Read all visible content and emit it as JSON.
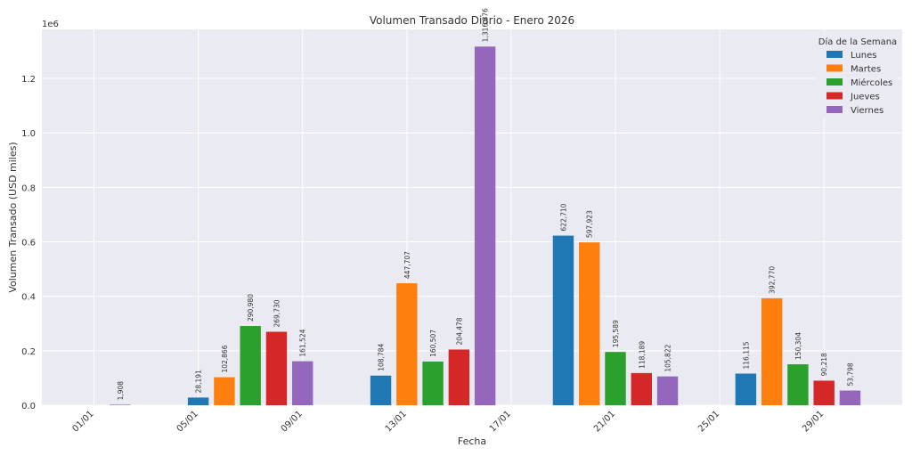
{
  "chart_data": {
    "type": "bar",
    "title": "Volumen Transado Diario - Enero 2026",
    "xlabel": "Fecha",
    "ylabel": "Volumen Transado (USD miles)",
    "y_multiplier": "1e6",
    "ylim": [
      0,
      1380000
    ],
    "yticks": [
      0,
      200000,
      400000,
      600000,
      800000,
      1000000,
      1200000
    ],
    "ytick_labels": [
      "0.0",
      "0.2",
      "0.4",
      "0.6",
      "0.8",
      "1.0",
      "1.2"
    ],
    "xlim": [
      "2025-12-30",
      "2026-02-01"
    ],
    "xticks": [
      "2026-01-01",
      "2026-01-05",
      "2026-01-09",
      "2026-01-13",
      "2026-01-17",
      "2026-01-21",
      "2026-01-25",
      "2026-01-29"
    ],
    "xtick_labels": [
      "01/01",
      "05/01",
      "09/01",
      "13/01",
      "17/01",
      "21/01",
      "25/01",
      "29/01"
    ],
    "grid": true,
    "background": "#eaeaf2",
    "legend": {
      "title": "Día de la Semana",
      "placement": "top-right",
      "entries": [
        {
          "name": "Lunes",
          "color": "#1f77b4"
        },
        {
          "name": "Martes",
          "color": "#ff7f0e"
        },
        {
          "name": "Miércoles",
          "color": "#2ca02c"
        },
        {
          "name": "Jueves",
          "color": "#d62728"
        },
        {
          "name": "Viernes",
          "color": "#9467bd"
        }
      ]
    },
    "bars": [
      {
        "date": "2026-01-02",
        "day": "Viernes",
        "value": 1908,
        "label": "1,908"
      },
      {
        "date": "2026-01-05",
        "day": "Lunes",
        "value": 28191,
        "label": "28,191"
      },
      {
        "date": "2026-01-06",
        "day": "Martes",
        "value": 102866,
        "label": "102,866"
      },
      {
        "date": "2026-01-07",
        "day": "Miércoles",
        "value": 290980,
        "label": "290,980"
      },
      {
        "date": "2026-01-08",
        "day": "Jueves",
        "value": 269730,
        "label": "269,730"
      },
      {
        "date": "2026-01-09",
        "day": "Viernes",
        "value": 161524,
        "label": "161,524"
      },
      {
        "date": "2026-01-12",
        "day": "Lunes",
        "value": 108784,
        "label": "108,784"
      },
      {
        "date": "2026-01-13",
        "day": "Martes",
        "value": 447707,
        "label": "447,707"
      },
      {
        "date": "2026-01-14",
        "day": "Miércoles",
        "value": 160507,
        "label": "160,507"
      },
      {
        "date": "2026-01-15",
        "day": "Jueves",
        "value": 204478,
        "label": "204,478"
      },
      {
        "date": "2026-01-16",
        "day": "Viernes",
        "value": 1316876,
        "label": "1,316,876"
      },
      {
        "date": "2026-01-19",
        "day": "Lunes",
        "value": 622710,
        "label": "622,710"
      },
      {
        "date": "2026-01-20",
        "day": "Martes",
        "value": 597923,
        "label": "597,923"
      },
      {
        "date": "2026-01-21",
        "day": "Miércoles",
        "value": 195589,
        "label": "195,589"
      },
      {
        "date": "2026-01-22",
        "day": "Jueves",
        "value": 118189,
        "label": "118,189"
      },
      {
        "date": "2026-01-23",
        "day": "Viernes",
        "value": 105822,
        "label": "105,822"
      },
      {
        "date": "2026-01-26",
        "day": "Lunes",
        "value": 116115,
        "label": "116,115"
      },
      {
        "date": "2026-01-27",
        "day": "Martes",
        "value": 392770,
        "label": "392,770"
      },
      {
        "date": "2026-01-28",
        "day": "Miércoles",
        "value": 150304,
        "label": "150,304"
      },
      {
        "date": "2026-01-29",
        "day": "Jueves",
        "value": 90218,
        "label": "90,218"
      },
      {
        "date": "2026-01-30",
        "day": "Viernes",
        "value": 53798,
        "label": "53,798"
      }
    ]
  }
}
